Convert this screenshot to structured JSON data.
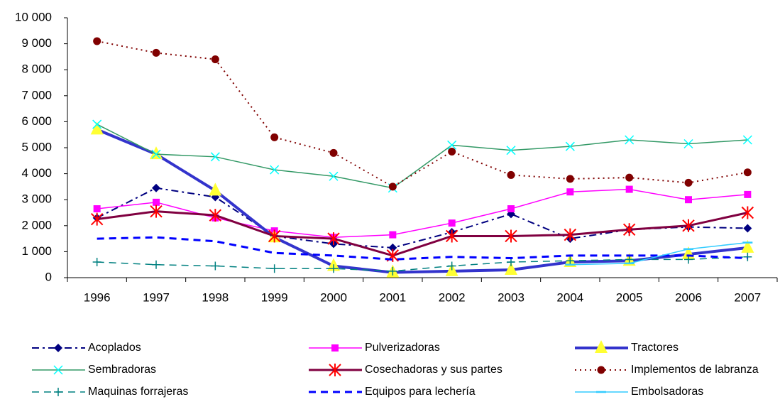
{
  "chart_data": {
    "type": "line",
    "categories": [
      "1996",
      "1997",
      "1998",
      "1999",
      "2000",
      "2001",
      "2002",
      "2003",
      "2004",
      "2005",
      "2006",
      "2007"
    ],
    "ylim": [
      0,
      10000
    ],
    "yticks": [
      0,
      {
        "value": 1000,
        "label": "1 000"
      },
      {
        "value": 2000,
        "label": "2 000"
      },
      {
        "value": 3000,
        "label": "3 000"
      },
      {
        "value": 4000,
        "label": "4 000"
      },
      {
        "value": 5000,
        "label": "5 000"
      },
      {
        "value": 6000,
        "label": "6 000"
      },
      {
        "value": 7000,
        "label": "7 000"
      },
      {
        "value": 8000,
        "label": "8 000"
      },
      {
        "value": 9000,
        "label": "9 000"
      },
      {
        "value": 10000,
        "label": "10 000"
      }
    ],
    "grid": false,
    "legend": "bottom",
    "series": [
      {
        "name": "Acoplados",
        "color": "#000080",
        "marker_color": "#000080",
        "marker": "diamond",
        "dash": "dashdot",
        "width": 2,
        "values": [
          2300,
          3450,
          3100,
          1600,
          1300,
          1150,
          1750,
          2450,
          1500,
          1850,
          1950,
          1900
        ]
      },
      {
        "name": "Pulverizadoras",
        "color": "#ff00ff",
        "marker_color": "#ff00ff",
        "marker": "square",
        "dash": "solid",
        "width": 1.5,
        "values": [
          2650,
          2900,
          2300,
          1800,
          1550,
          1650,
          2100,
          2650,
          3300,
          3400,
          3000,
          3200
        ]
      },
      {
        "name": "Tractores",
        "color": "#3333cc",
        "marker_color": "#ffff33",
        "marker": "triangle",
        "dash": "solid",
        "width": 4,
        "values": [
          5700,
          4750,
          3350,
          1550,
          450,
          200,
          250,
          300,
          600,
          650,
          900,
          1150
        ]
      },
      {
        "name": "Sembradoras",
        "color": "#339966",
        "marker_color": "#00ffff",
        "marker": "x",
        "dash": "solid",
        "width": 1.5,
        "values": [
          5900,
          4750,
          4650,
          4150,
          3900,
          3450,
          5100,
          4900,
          5050,
          5300,
          5150,
          5300
        ]
      },
      {
        "name": "Cosechadoras y sus partes",
        "color": "#800040",
        "marker_color": "#ff0000",
        "marker": "asterisk",
        "dash": "solid",
        "width": 3,
        "values": [
          2250,
          2550,
          2400,
          1600,
          1500,
          850,
          1600,
          1600,
          1650,
          1850,
          2000,
          2500
        ]
      },
      {
        "name": "Implementos de labranza",
        "color": "#800000",
        "marker_color": "#800000",
        "marker": "circle",
        "dash": "dot",
        "width": 2,
        "values": [
          9100,
          8650,
          8400,
          5400,
          4800,
          3500,
          4850,
          3950,
          3800,
          3850,
          3650,
          4050
        ]
      },
      {
        "name": "Maquinas forrajeras",
        "color": "#008080",
        "marker_color": "#008080",
        "marker": "plus",
        "dash": "dash",
        "width": 1.5,
        "values": [
          600,
          500,
          450,
          350,
          350,
          250,
          450,
          600,
          650,
          700,
          700,
          800
        ]
      },
      {
        "name": "Equipos para lechería",
        "color": "#0000ff",
        "marker_color": "#0000ff",
        "marker": "none",
        "dash": "dash",
        "width": 3,
        "values": [
          1500,
          1550,
          1400,
          950,
          850,
          700,
          800,
          750,
          850,
          850,
          850,
          750
        ]
      },
      {
        "name": "Embolsadoras",
        "color": "#33ccff",
        "marker_color": "#33ccff",
        "marker": "dash",
        "dash": "solid",
        "width": 1.5,
        "values": [
          null,
          null,
          null,
          null,
          null,
          null,
          null,
          null,
          500,
          550,
          1100,
          1350
        ]
      }
    ]
  }
}
